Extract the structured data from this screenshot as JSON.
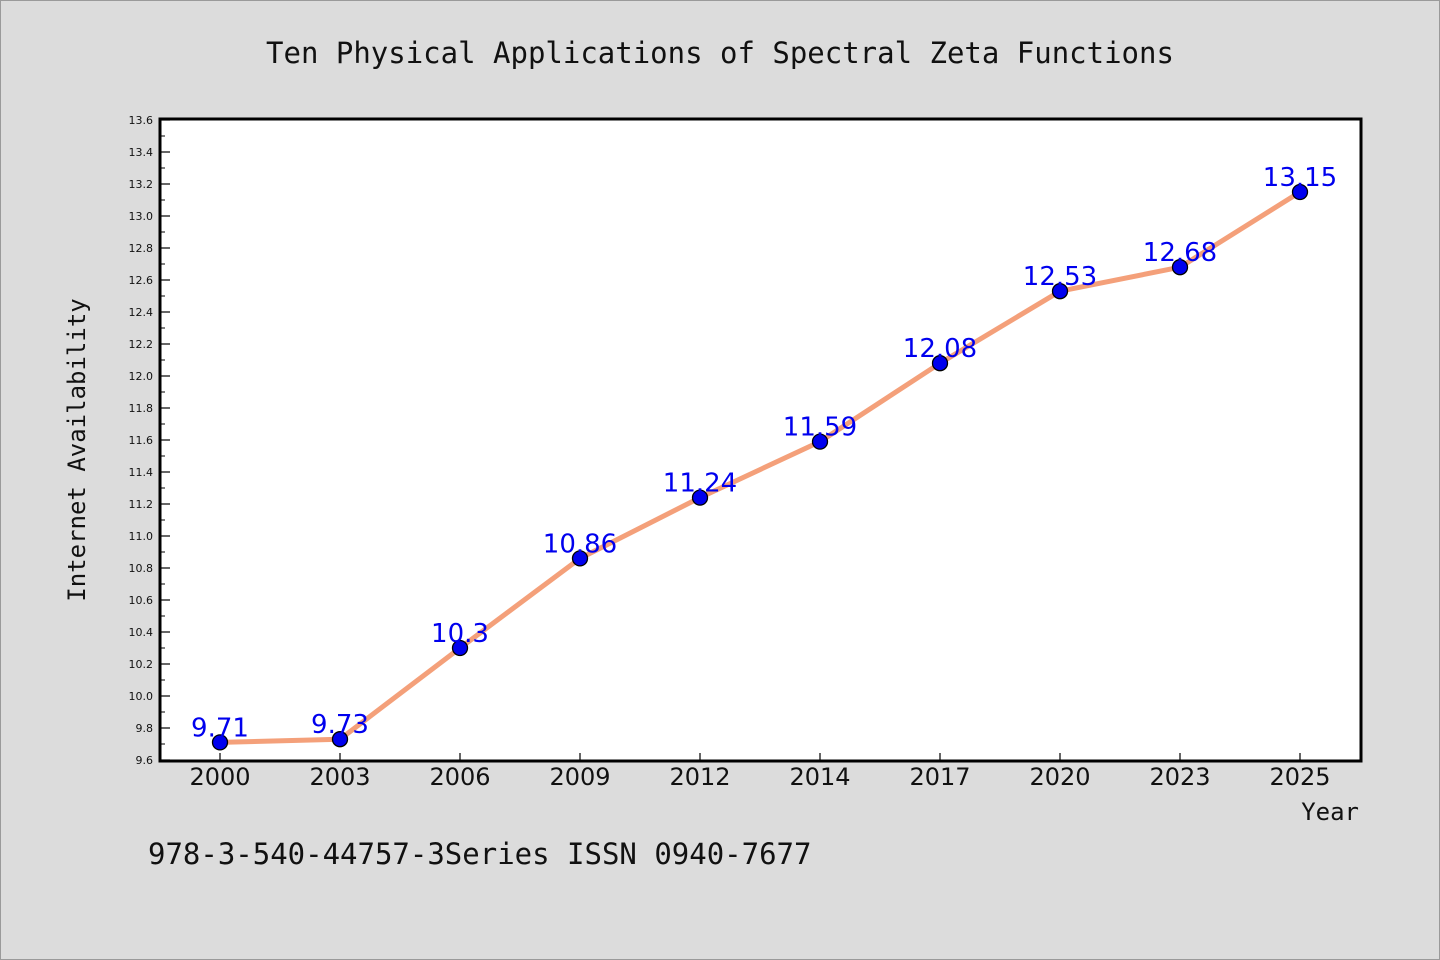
{
  "chart_data": {
    "type": "line",
    "title": "Ten Physical Applications of Spectral Zeta Functions",
    "xlabel": "Year",
    "ylabel": "Internet Availability",
    "categories": [
      "2000",
      "2003",
      "2006",
      "2009",
      "2012",
      "2014",
      "2017",
      "2020",
      "2023",
      "2025"
    ],
    "values": [
      9.71,
      9.73,
      10.3,
      10.86,
      11.24,
      11.59,
      12.08,
      12.53,
      12.68,
      13.15
    ],
    "data_labels": [
      "9.71",
      "9.73",
      "10.3",
      "10.86",
      "11.24",
      "11.59",
      "12.08",
      "12.53",
      "12.68",
      "13.15"
    ],
    "ylim": [
      9.6,
      13.6
    ],
    "yticks": [
      "9.6",
      "9.8",
      "10.0",
      "10.2",
      "10.4",
      "10.6",
      "10.8",
      "11.0",
      "11.2",
      "11.4",
      "11.6",
      "11.8",
      "12.0",
      "12.2",
      "12.4",
      "12.6",
      "12.8",
      "13.0",
      "13.2",
      "13.4",
      "13.6"
    ],
    "grid": false,
    "line_color": "#f4a07a",
    "marker_color": "#0000ee",
    "label_color": "#0000ee"
  },
  "footer": "978-3-540-44757-3Series ISSN 0940-7677"
}
